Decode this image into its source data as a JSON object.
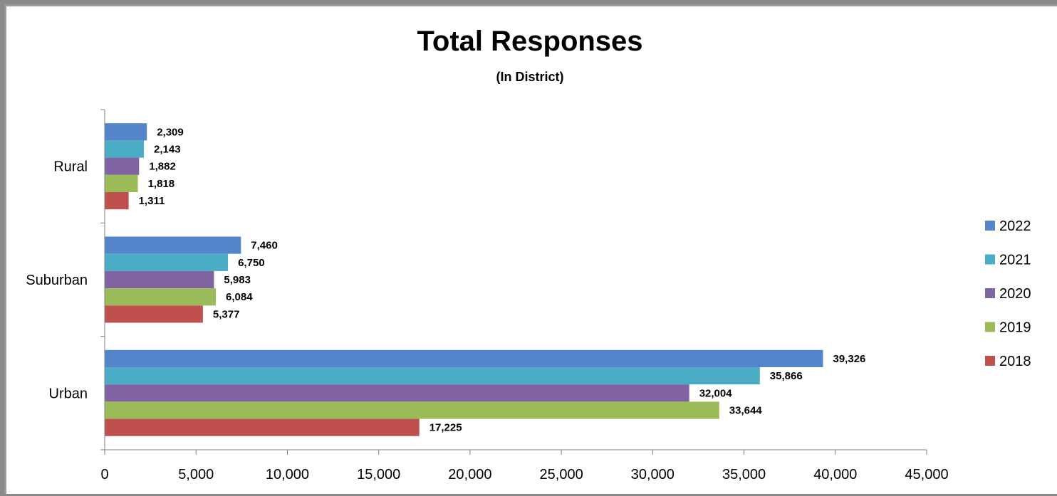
{
  "chart_data": {
    "type": "bar",
    "orientation": "horizontal",
    "title": "Total Responses",
    "subtitle": "(In District)",
    "categories": [
      "Rural",
      "Suburban",
      "Urban"
    ],
    "series": [
      {
        "name": "2022",
        "color": "#5585C9",
        "values": [
          2309,
          7460,
          39326
        ]
      },
      {
        "name": "2021",
        "color": "#4BACC6",
        "values": [
          2143,
          6750,
          35866
        ]
      },
      {
        "name": "2020",
        "color": "#8064A2",
        "values": [
          1882,
          5983,
          32004
        ]
      },
      {
        "name": "2019",
        "color": "#9BBB59",
        "values": [
          1818,
          6084,
          33644
        ]
      },
      {
        "name": "2018",
        "color": "#C0504D",
        "values": [
          1311,
          5377,
          17225
        ]
      }
    ],
    "data_labels": [
      [
        "2,309",
        "7,460",
        "39,326"
      ],
      [
        "2,143",
        "6,750",
        "35,866"
      ],
      [
        "1,882",
        "5,983",
        "32,004"
      ],
      [
        "1,818",
        "6,084",
        "33,644"
      ],
      [
        "1,311",
        "5,377",
        "17,225"
      ]
    ],
    "xlim": [
      0,
      45000
    ],
    "x_ticks": [
      0,
      5000,
      10000,
      15000,
      20000,
      25000,
      30000,
      35000,
      40000,
      45000
    ],
    "x_tick_labels": [
      "0",
      "5,000",
      "10,000",
      "15,000",
      "20,000",
      "25,000",
      "30,000",
      "35,000",
      "40,000",
      "45,000"
    ],
    "xlabel": "",
    "ylabel": "",
    "grid": false,
    "legend_position": "right"
  }
}
